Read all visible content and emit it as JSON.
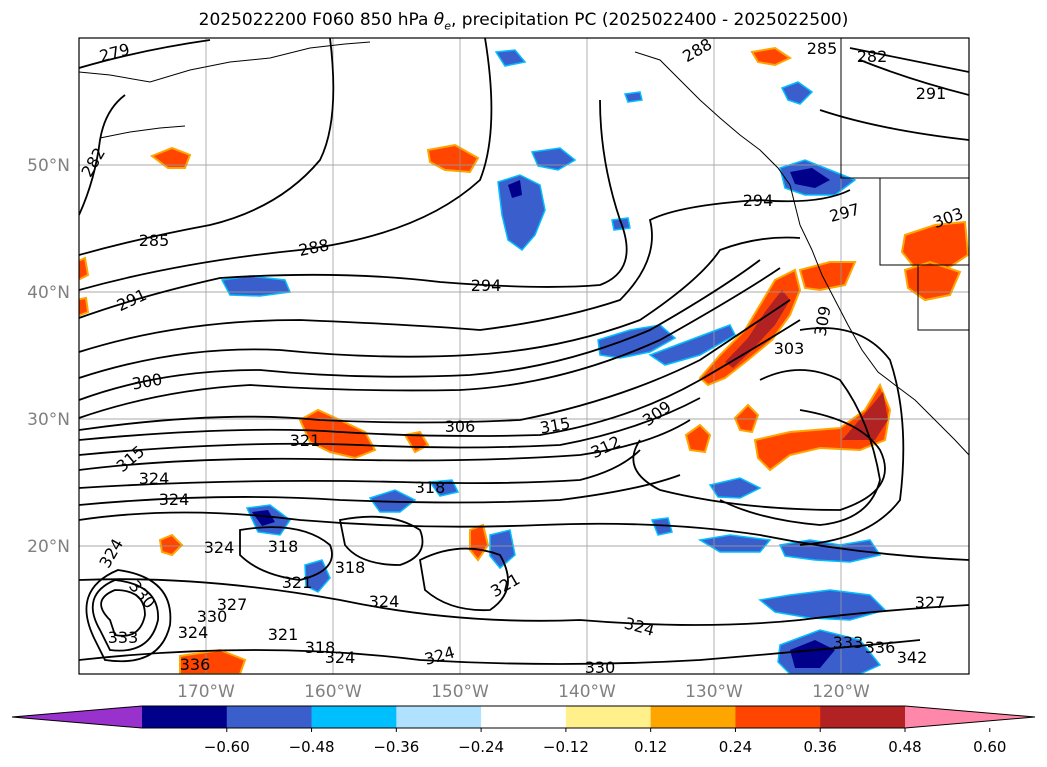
{
  "title": {
    "prefix": "2025022200 F060 850 hPa ",
    "theta": "θ",
    "sub": "e",
    "suffix": ", precipitation PC (2025022400 - 2025022500)"
  },
  "map_data": {
    "lon_range": [
      -180,
      -110
    ],
    "lat_range": [
      10,
      60
    ],
    "lat_ticks": [
      "20°N",
      "30°N",
      "40°N",
      "50°N"
    ],
    "lon_ticks": [
      "170°W",
      "160°W",
      "150°W",
      "140°W",
      "130°W",
      "120°W"
    ],
    "colorbar": {
      "ticks": [
        "−0.60",
        "−0.48",
        "−0.36",
        "−0.24",
        "−0.12",
        "0.12",
        "0.24",
        "0.36",
        "0.48",
        "0.60"
      ],
      "colors": [
        "#9932cc",
        "#00008b",
        "#3a5fcd",
        "#00bfff",
        "#b0e2ff",
        "#ffffff",
        "#fff08c",
        "#ffa500",
        "#ff4500",
        "#b22222",
        "#ff88aa"
      ],
      "extend": "both"
    },
    "contour_labels": [
      "279",
      "282",
      "285",
      "288",
      "291",
      "294",
      "297",
      "300",
      "303",
      "306",
      "309",
      "312",
      "315",
      "318",
      "321",
      "324",
      "327",
      "330",
      "333",
      "336",
      "342"
    ]
  }
}
